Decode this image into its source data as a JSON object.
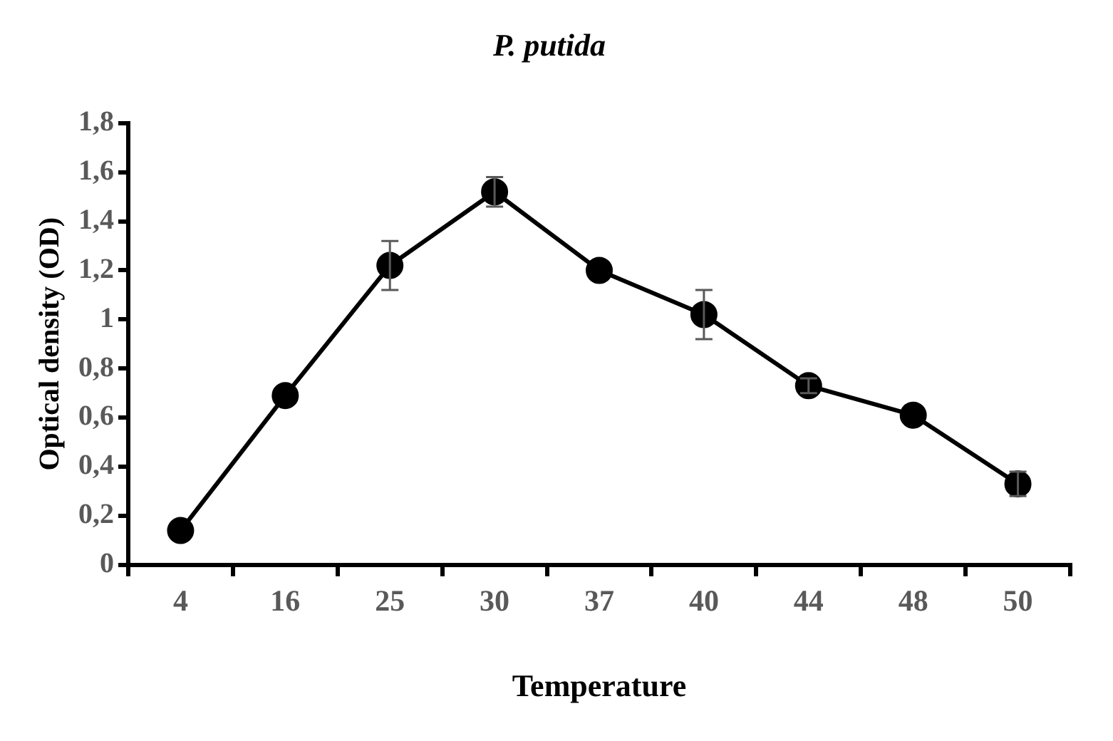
{
  "chart_data": {
    "type": "line",
    "title": "P. putida",
    "xlabel": "Temperature",
    "ylabel": "Optical density (OD)",
    "categories": [
      "4",
      "16",
      "25",
      "30",
      "37",
      "40",
      "44",
      "48",
      "50"
    ],
    "series": [
      {
        "color": "#000000",
        "values": [
          0.14,
          0.69,
          1.22,
          1.52,
          1.2,
          1.02,
          0.73,
          0.61,
          0.33
        ],
        "errors": [
          null,
          null,
          0.1,
          0.06,
          null,
          0.1,
          0.03,
          null,
          0.05
        ]
      }
    ],
    "ylim": [
      0,
      1.8
    ],
    "yticks": [
      0,
      {
        "value": 0.2,
        "label": "0,2"
      },
      {
        "value": 0.4,
        "label": "0,4"
      },
      {
        "value": 0.6,
        "label": "0,6"
      },
      {
        "value": 0.8,
        "label": "0,8"
      },
      1,
      {
        "value": 1.2,
        "label": "1,2"
      },
      {
        "value": 1.4,
        "label": "1,4"
      },
      {
        "value": 1.6,
        "label": "1,6"
      },
      {
        "value": 1.8,
        "label": "1,8"
      }
    ],
    "grid": false,
    "legend": false,
    "marker": "circle",
    "line_style": "solid"
  }
}
